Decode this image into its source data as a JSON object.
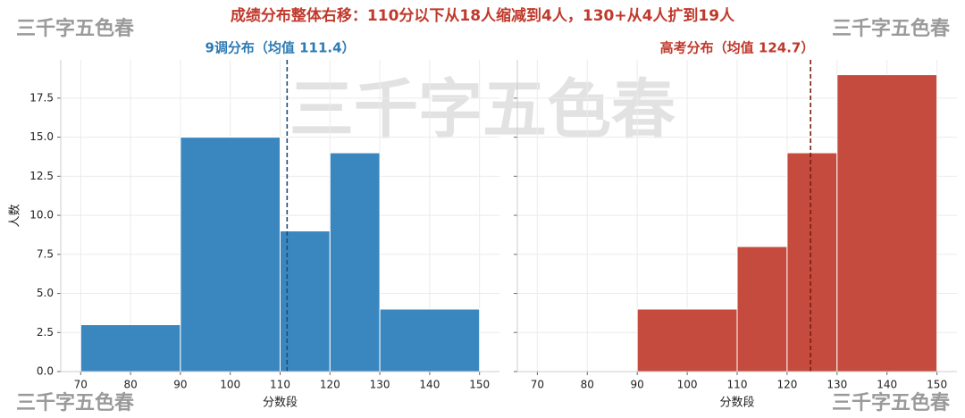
{
  "title": "成绩分布整体右移：110分以下从18人缩减到4人，130+从4人扩到19人",
  "watermarks": [
    "三千字五色春",
    "三千字五色春",
    "三千字五色春",
    "三千字五色春",
    "三千字五色春"
  ],
  "chart_data": [
    {
      "type": "histogram",
      "title": "9调分布（均值 111.4）",
      "title_color": "#2e7bb4",
      "bins": [
        70,
        90,
        110,
        120,
        130,
        150
      ],
      "values": [
        3,
        15,
        9,
        14,
        4
      ],
      "color": "#3a87c0",
      "mean": 111.4,
      "mean_color": "#1f4e79",
      "xlabel": "分数段",
      "ylabel": "人数",
      "xlim": [
        66,
        154
      ],
      "xticks": [
        70,
        80,
        90,
        100,
        110,
        120,
        130,
        140,
        150
      ],
      "ylim": [
        0,
        19.95
      ],
      "yticks": [
        {
          "value": 0,
          "label": "0.0"
        },
        2.5,
        {
          "value": 5,
          "label": "5.0"
        },
        7.5,
        {
          "value": 10,
          "label": "10.0"
        },
        12.5,
        {
          "value": 15,
          "label": "15.0"
        },
        17.5
      ],
      "grid": true
    },
    {
      "type": "histogram",
      "title": "高考分布（均值 124.7）",
      "title_color": "#c0392b",
      "bins": [
        90,
        110,
        120,
        130,
        150
      ],
      "values": [
        4,
        8,
        14,
        19
      ],
      "color": "#c44b3d",
      "mean": 124.7,
      "mean_color": "#7b1e14",
      "xlabel": "分数段",
      "xlim": [
        66,
        154
      ],
      "xticks": [
        70,
        80,
        90,
        100,
        110,
        120,
        130,
        140,
        150
      ],
      "ylim": [
        0,
        19.95
      ],
      "grid": true
    }
  ]
}
